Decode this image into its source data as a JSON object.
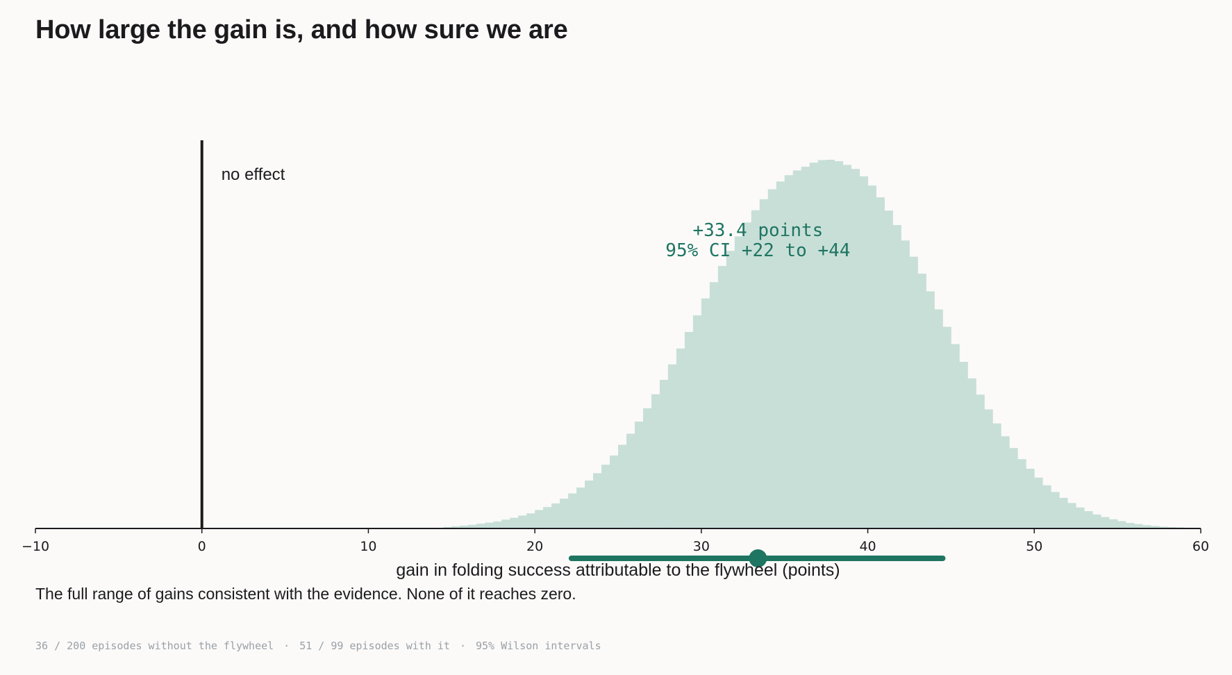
{
  "title": "How large the gain is, and how sure we are",
  "subtitle": "The full range of gains consistent with the evidence. None of it reaches zero.",
  "footer": {
    "part1": "36 / 200 episodes without the flywheel",
    "part2": "51 / 99 episodes with it",
    "part3": "95% Wilson intervals",
    "separator": "·"
  },
  "colors": {
    "fill": "#c8dfd8",
    "accent": "#1e7561",
    "ink": "#1b1b1e"
  },
  "chart_data": {
    "type": "histogram",
    "xlabel": "gain in folding success attributable to the flywheel (points)",
    "xlim": [
      -10,
      60
    ],
    "ticks": [
      -10,
      0,
      10,
      20,
      30,
      40,
      50,
      60
    ],
    "tick_labels": [
      "−10",
      "0",
      "10",
      "20",
      "30",
      "40",
      "50",
      "60"
    ],
    "reference_line": {
      "x": 0,
      "label": "no effect"
    },
    "estimate": 33.4,
    "ci": [
      22.2,
      44.5
    ],
    "annotation_line1": "+33.4 points",
    "annotation_line2": "95% CI  +22 to +44",
    "bin_width": 0.5,
    "bins_start": 14.5,
    "relative_density": [
      0.004,
      0.006,
      0.008,
      0.01,
      0.013,
      0.016,
      0.019,
      0.024,
      0.029,
      0.035,
      0.041,
      0.05,
      0.058,
      0.068,
      0.081,
      0.095,
      0.111,
      0.13,
      0.15,
      0.173,
      0.198,
      0.227,
      0.257,
      0.29,
      0.326,
      0.364,
      0.403,
      0.445,
      0.488,
      0.533,
      0.578,
      0.624,
      0.668,
      0.712,
      0.753,
      0.792,
      0.83,
      0.863,
      0.893,
      0.92,
      0.941,
      0.958,
      0.971,
      0.981,
      0.992,
      0.999,
      1.0,
      0.996,
      0.986,
      0.975,
      0.955,
      0.93,
      0.898,
      0.862,
      0.823,
      0.781,
      0.737,
      0.691,
      0.643,
      0.594,
      0.547,
      0.5,
      0.452,
      0.407,
      0.363,
      0.323,
      0.285,
      0.25,
      0.218,
      0.188,
      0.162,
      0.138,
      0.117,
      0.099,
      0.083,
      0.069,
      0.057,
      0.047,
      0.038,
      0.031,
      0.025,
      0.02,
      0.015,
      0.012,
      0.009,
      0.007,
      0.005,
      0.004,
      0.003,
      0.002
    ]
  }
}
